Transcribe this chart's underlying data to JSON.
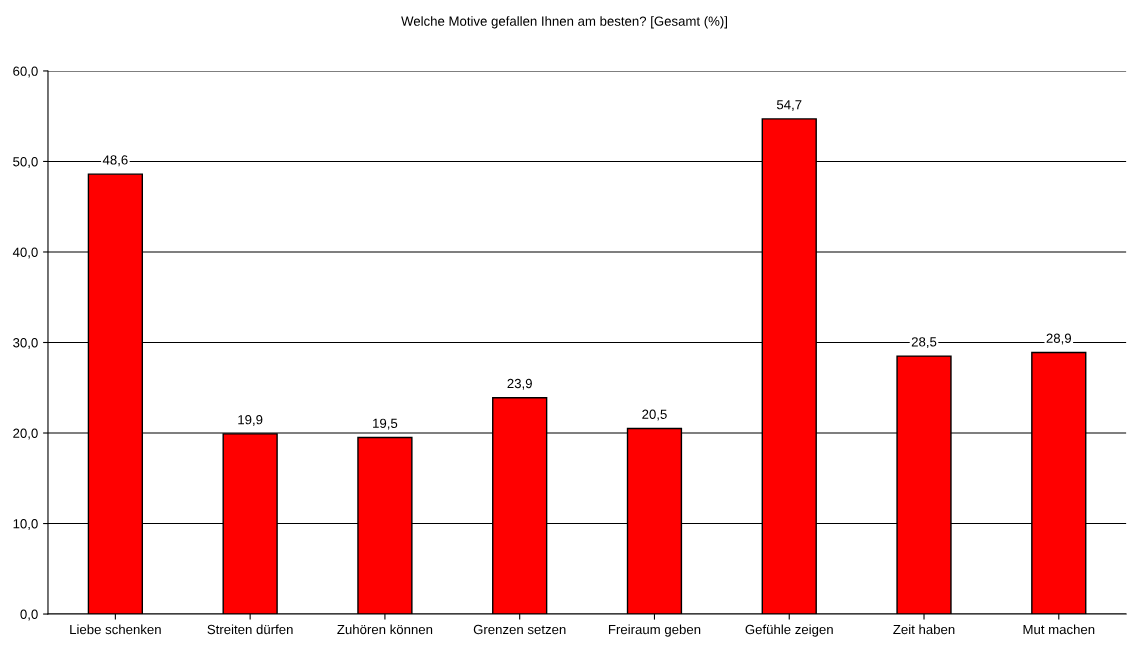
{
  "chart_data": {
    "type": "bar",
    "title": "Welche Motive gefallen Ihnen am besten? [Gesamt (%)]",
    "categories": [
      "Liebe schenken",
      "Streiten dürfen",
      "Zuhören können",
      "Grenzen setzen",
      "Freiraum geben",
      "Gefühle zeigen",
      "Zeit haben",
      "Mut machen"
    ],
    "values": [
      48.6,
      19.9,
      19.5,
      23.9,
      20.5,
      54.7,
      28.5,
      28.9
    ],
    "value_labels": [
      "48,6",
      "19,9",
      "19,5",
      "23,9",
      "20,5",
      "54,7",
      "28,5",
      "28,9"
    ],
    "color": "#ff0000",
    "ylim": [
      0,
      60
    ],
    "yticks": [
      {
        "value": 0,
        "label": "0,0"
      },
      {
        "value": 10,
        "label": "10,0"
      },
      {
        "value": 20,
        "label": "20,0"
      },
      {
        "value": 30,
        "label": "30,0"
      },
      {
        "value": 40,
        "label": "40,0"
      },
      {
        "value": 50,
        "label": "50,0"
      },
      {
        "value": 60,
        "label": "60,0"
      }
    ],
    "grid": "y"
  }
}
